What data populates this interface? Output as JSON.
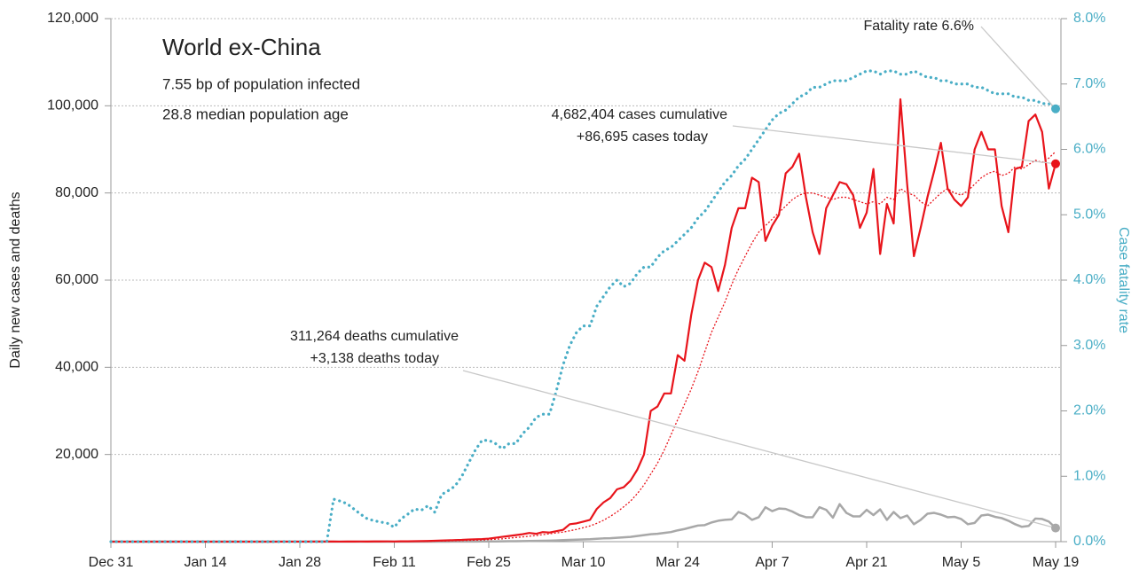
{
  "chart_data": {
    "type": "line",
    "title": "World ex-China",
    "subtitles": [
      "7.55 bp of population infected",
      "28.8 median population age"
    ],
    "ylabel": "Daily new cases and deaths",
    "y2label": "Case fatality rate",
    "categories": [
      "Dec 31",
      null,
      null,
      null,
      null,
      null,
      null,
      null,
      null,
      null,
      null,
      null,
      null,
      null,
      "Jan 14",
      null,
      null,
      null,
      null,
      null,
      null,
      null,
      null,
      null,
      null,
      null,
      null,
      null,
      "Jan 28",
      null,
      null,
      null,
      null,
      null,
      null,
      null,
      null,
      null,
      null,
      null,
      null,
      null,
      "Feb 11",
      null,
      null,
      null,
      null,
      null,
      null,
      null,
      null,
      null,
      null,
      null,
      null,
      null,
      "Feb 25",
      null,
      null,
      null,
      null,
      null,
      null,
      null,
      null,
      null,
      null,
      null,
      null,
      null,
      "Mar 10",
      null,
      null,
      null,
      null,
      null,
      null,
      null,
      null,
      null,
      null,
      null,
      null,
      null,
      "Mar 24",
      null,
      null,
      null,
      null,
      null,
      null,
      null,
      null,
      null,
      null,
      null,
      null,
      null,
      "Apr 7",
      null,
      null,
      null,
      null,
      null,
      null,
      null,
      null,
      null,
      null,
      null,
      null,
      null,
      "Apr 21",
      null,
      null,
      null,
      null,
      null,
      null,
      null,
      null,
      null,
      null,
      null,
      null,
      null,
      "May 5",
      null,
      null,
      null,
      null,
      null,
      null,
      null,
      null,
      null,
      null,
      null,
      null,
      null,
      "May 19"
    ],
    "ylim": [
      0,
      120000
    ],
    "yticks": [
      {
        "value": 20000,
        "label": "20,000"
      },
      {
        "value": 40000,
        "label": "40,000"
      },
      {
        "value": 60000,
        "label": "60,000"
      },
      {
        "value": 80000,
        "label": "80,000"
      },
      {
        "value": 100000,
        "label": "100,000"
      },
      {
        "value": 120000,
        "label": "120,000"
      }
    ],
    "y2lim": [
      0,
      8
    ],
    "y2ticks": [
      {
        "value": 0,
        "label": "0.0%"
      },
      {
        "value": 1,
        "label": "1.0%"
      },
      {
        "value": 2,
        "label": "2.0%"
      },
      {
        "value": 3,
        "label": "3.0%"
      },
      {
        "value": 4,
        "label": "4.0%"
      },
      {
        "value": 5,
        "label": "5.0%"
      },
      {
        "value": 6,
        "label": "6.0%"
      },
      {
        "value": 7,
        "label": "7.0%"
      },
      {
        "value": 8,
        "label": "8.0%"
      }
    ],
    "grid": true,
    "series": [
      {
        "color": "#a8a8a8",
        "style": "solid",
        "width": 2.5,
        "end_marker": true,
        "annotation": [
          "311,264 deaths cumulative",
          "+3,138 deaths today"
        ],
        "values": [
          0,
          0,
          0,
          0,
          0,
          0,
          0,
          0,
          0,
          0,
          0,
          0,
          0,
          0,
          0,
          0,
          0,
          0,
          0,
          0,
          0,
          0,
          0,
          0,
          0,
          0,
          0,
          0,
          0,
          0,
          0,
          0,
          0,
          0,
          0,
          0,
          0,
          0,
          0,
          0,
          0,
          1,
          2,
          2,
          3,
          3,
          5,
          5,
          8,
          10,
          12,
          15,
          20,
          25,
          35,
          40,
          50,
          60,
          80,
          90,
          110,
          130,
          150,
          180,
          200,
          240,
          280,
          350,
          400,
          450,
          500,
          550,
          650,
          750,
          800,
          900,
          1000,
          1100,
          1300,
          1500,
          1700,
          1800,
          2000,
          2200,
          2600,
          2900,
          3300,
          3700,
          3800,
          4400,
          4800,
          5000,
          5100,
          6800,
          6200,
          5000,
          5600,
          7900,
          7000,
          7600,
          7500,
          6900,
          6100,
          5600,
          5600,
          7900,
          7300,
          5500,
          8600,
          6600,
          5800,
          5800,
          7300,
          6100,
          7400,
          5000,
          6800,
          5400,
          6000,
          4000,
          5000,
          6400,
          6600,
          6200,
          5600,
          5700,
          5200,
          4000,
          4300,
          6000,
          6200,
          5700,
          5400,
          4800,
          4000,
          3400,
          3600,
          5300,
          5200,
          4600,
          3138
        ]
      },
      {
        "color": "#e8141b",
        "style": "dotted",
        "width": 1.3,
        "end_marker": false,
        "values": [
          0,
          0,
          0,
          0,
          0,
          0,
          0,
          0,
          0,
          0,
          0,
          0,
          0,
          0,
          0,
          0,
          0,
          0,
          0,
          0,
          0,
          2,
          2,
          3,
          3,
          4,
          5,
          6,
          8,
          9,
          10,
          12,
          14,
          16,
          18,
          20,
          22,
          25,
          28,
          32,
          35,
          40,
          45,
          50,
          60,
          70,
          80,
          100,
          120,
          150,
          180,
          220,
          260,
          300,
          350,
          400,
          480,
          560,
          650,
          800,
          950,
          1100,
          1250,
          1400,
          1600,
          1800,
          2000,
          2200,
          2500,
          2800,
          3200,
          3600,
          4200,
          4900,
          5800,
          6800,
          8000,
          9300,
          11000,
          13000,
          15500,
          18000,
          21000,
          24500,
          28000,
          31500,
          35000,
          39000,
          43500,
          48000,
          51500,
          55000,
          59000,
          62500,
          65500,
          68500,
          71000,
          72500,
          74000,
          75500,
          77000,
          78500,
          79500,
          80000,
          80000,
          79500,
          79000,
          78500,
          79000,
          79000,
          78500,
          78000,
          77500,
          78000,
          77500,
          79000,
          78500,
          81000,
          80000,
          79500,
          78000,
          77000,
          78500,
          80000,
          81000,
          80000,
          79500,
          80500,
          82000,
          83500,
          84500,
          85000,
          84000,
          84500,
          86000,
          85500,
          86500,
          87500,
          87000,
          88000,
          89500
        ]
      },
      {
        "color": "#e8141b",
        "style": "solid",
        "width": 2.2,
        "end_marker": true,
        "annotation": [
          "4,682,404 cases cumulative",
          "+86,695 cases today"
        ],
        "values": [
          0,
          0,
          0,
          0,
          0,
          0,
          0,
          0,
          0,
          0,
          0,
          0,
          0,
          0,
          0,
          0,
          0,
          0,
          0,
          0,
          0,
          2,
          3,
          5,
          3,
          8,
          10,
          12,
          15,
          10,
          20,
          25,
          30,
          20,
          15,
          30,
          25,
          40,
          30,
          50,
          45,
          60,
          40,
          70,
          80,
          100,
          120,
          150,
          200,
          250,
          300,
          350,
          400,
          500,
          550,
          600,
          700,
          900,
          1100,
          1300,
          1500,
          1700,
          2000,
          1800,
          2200,
          2100,
          2400,
          2700,
          4000,
          4200,
          4600,
          5000,
          7500,
          9000,
          10000,
          12000,
          12500,
          14000,
          16500,
          20000,
          30000,
          31000,
          34000,
          34000,
          42800,
          41500,
          52000,
          60000,
          64000,
          63000,
          57500,
          63500,
          72000,
          76500,
          76500,
          83500,
          82500,
          69000,
          72500,
          75000,
          84500,
          86000,
          89000,
          79000,
          71000,
          66000,
          76500,
          79500,
          82500,
          82000,
          79500,
          72000,
          75500,
          85500,
          66000,
          77500,
          73000,
          101500,
          82000,
          65500,
          72000,
          79000,
          85000,
          91500,
          81000,
          78500,
          77000,
          79000,
          90000,
          94000,
          90000,
          90000,
          77000,
          71000,
          85500,
          86000,
          96500,
          98000,
          94000,
          81000,
          86695
        ]
      },
      {
        "color": "#4aaec6",
        "style": "dotted",
        "width": 3.2,
        "end_marker": true,
        "axis": "y2",
        "annotation": [
          "Fatality rate 6.6%"
        ],
        "values": [
          0,
          0,
          0,
          0,
          0,
          0,
          0,
          0,
          0,
          0,
          0,
          0,
          0,
          0,
          0,
          0,
          0,
          0,
          0,
          0,
          0,
          0,
          0,
          0,
          0,
          0,
          0,
          0,
          0,
          0,
          0,
          0,
          0,
          0.65,
          0.62,
          0.58,
          0.5,
          0.42,
          0.35,
          0.32,
          0.3,
          0.28,
          0.22,
          0.35,
          0.42,
          0.5,
          0.48,
          0.55,
          0.45,
          0.72,
          0.78,
          0.85,
          1.0,
          1.2,
          1.4,
          1.55,
          1.55,
          1.5,
          1.42,
          1.5,
          1.5,
          1.65,
          1.75,
          1.9,
          1.95,
          1.95,
          2.3,
          2.7,
          3.0,
          3.2,
          3.3,
          3.3,
          3.6,
          3.75,
          3.9,
          4.0,
          3.9,
          3.95,
          4.1,
          4.2,
          4.2,
          4.35,
          4.45,
          4.5,
          4.6,
          4.7,
          4.8,
          4.95,
          5.05,
          5.2,
          5.35,
          5.5,
          5.6,
          5.75,
          5.85,
          6.0,
          6.15,
          6.3,
          6.45,
          6.55,
          6.6,
          6.7,
          6.8,
          6.85,
          6.95,
          6.95,
          7.0,
          7.05,
          7.05,
          7.05,
          7.1,
          7.15,
          7.2,
          7.2,
          7.15,
          7.2,
          7.2,
          7.15,
          7.15,
          7.2,
          7.15,
          7.1,
          7.1,
          7.05,
          7.05,
          7.0,
          7.0,
          7.0,
          6.95,
          6.95,
          6.9,
          6.85,
          6.85,
          6.85,
          6.8,
          6.8,
          6.75,
          6.75,
          6.7,
          6.7,
          6.62
        ]
      }
    ]
  }
}
